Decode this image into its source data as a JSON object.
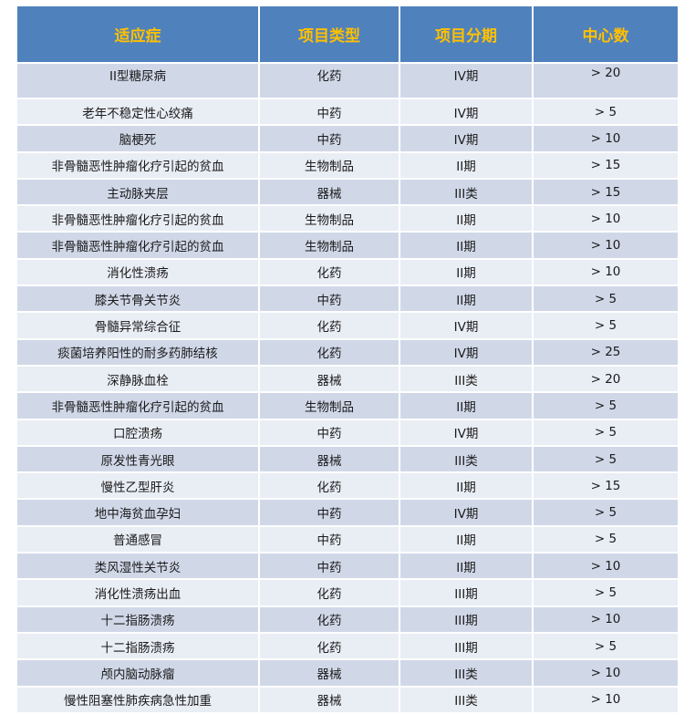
{
  "table": {
    "headers": [
      "适应症",
      "项目类型",
      "项目分期",
      "中心数"
    ],
    "header_text_color": "#ffc000",
    "header_bg_color": "#4f81bd",
    "rows": [
      [
        "II型糖尿病",
        "化药",
        "IV期",
        "> 20"
      ],
      [
        "老年不稳定性心绞痛",
        "中药",
        "IV期",
        "> 5"
      ],
      [
        "脑梗死",
        "中药",
        "IV期",
        "> 10"
      ],
      [
        "非骨髓恶性肿瘤化疗引起的贫血",
        "生物制品",
        "II期",
        "> 15"
      ],
      [
        "主动脉夹层",
        "器械",
        "III类",
        "> 15"
      ],
      [
        "非骨髓恶性肿瘤化疗引起的贫血",
        "生物制品",
        "II期",
        "> 10"
      ],
      [
        "非骨髓恶性肿瘤化疗引起的贫血",
        "生物制品",
        "II期",
        "> 10"
      ],
      [
        "消化性溃疡",
        "化药",
        "II期",
        "> 10"
      ],
      [
        "膝关节骨关节炎",
        "中药",
        "II期",
        "> 5"
      ],
      [
        "骨髓异常综合征",
        "化药",
        "IV期",
        "> 5"
      ],
      [
        "痰菌培养阳性的耐多药肺结核",
        "化药",
        "IV期",
        "> 25"
      ],
      [
        "深静脉血栓",
        "器械",
        "III类",
        "> 20"
      ],
      [
        "非骨髓恶性肿瘤化疗引起的贫血",
        "生物制品",
        "II期",
        "> 5"
      ],
      [
        "口腔溃疡",
        "中药",
        "IV期",
        "> 5"
      ],
      [
        "原发性青光眼",
        "器械",
        "III类",
        "> 5"
      ],
      [
        "慢性乙型肝炎",
        "化药",
        "II期",
        "> 15"
      ],
      [
        "地中海贫血孕妇",
        "中药",
        "IV期",
        "> 5"
      ],
      [
        "普通感冒",
        "中药",
        "II期",
        "> 5"
      ],
      [
        "类风湿性关节炎",
        "中药",
        "II期",
        "> 10"
      ],
      [
        "消化性溃疡出血",
        "化药",
        "III期",
        "> 5"
      ],
      [
        "十二指肠溃疡",
        "化药",
        "III期",
        "> 10"
      ],
      [
        "十二指肠溃疡",
        "化药",
        "III期",
        "> 5"
      ],
      [
        "颅内脑动脉瘤",
        "器械",
        "III类",
        "> 10"
      ],
      [
        "慢性阻塞性肺疾病急性加重",
        "器械",
        "III类",
        "> 10"
      ]
    ]
  }
}
